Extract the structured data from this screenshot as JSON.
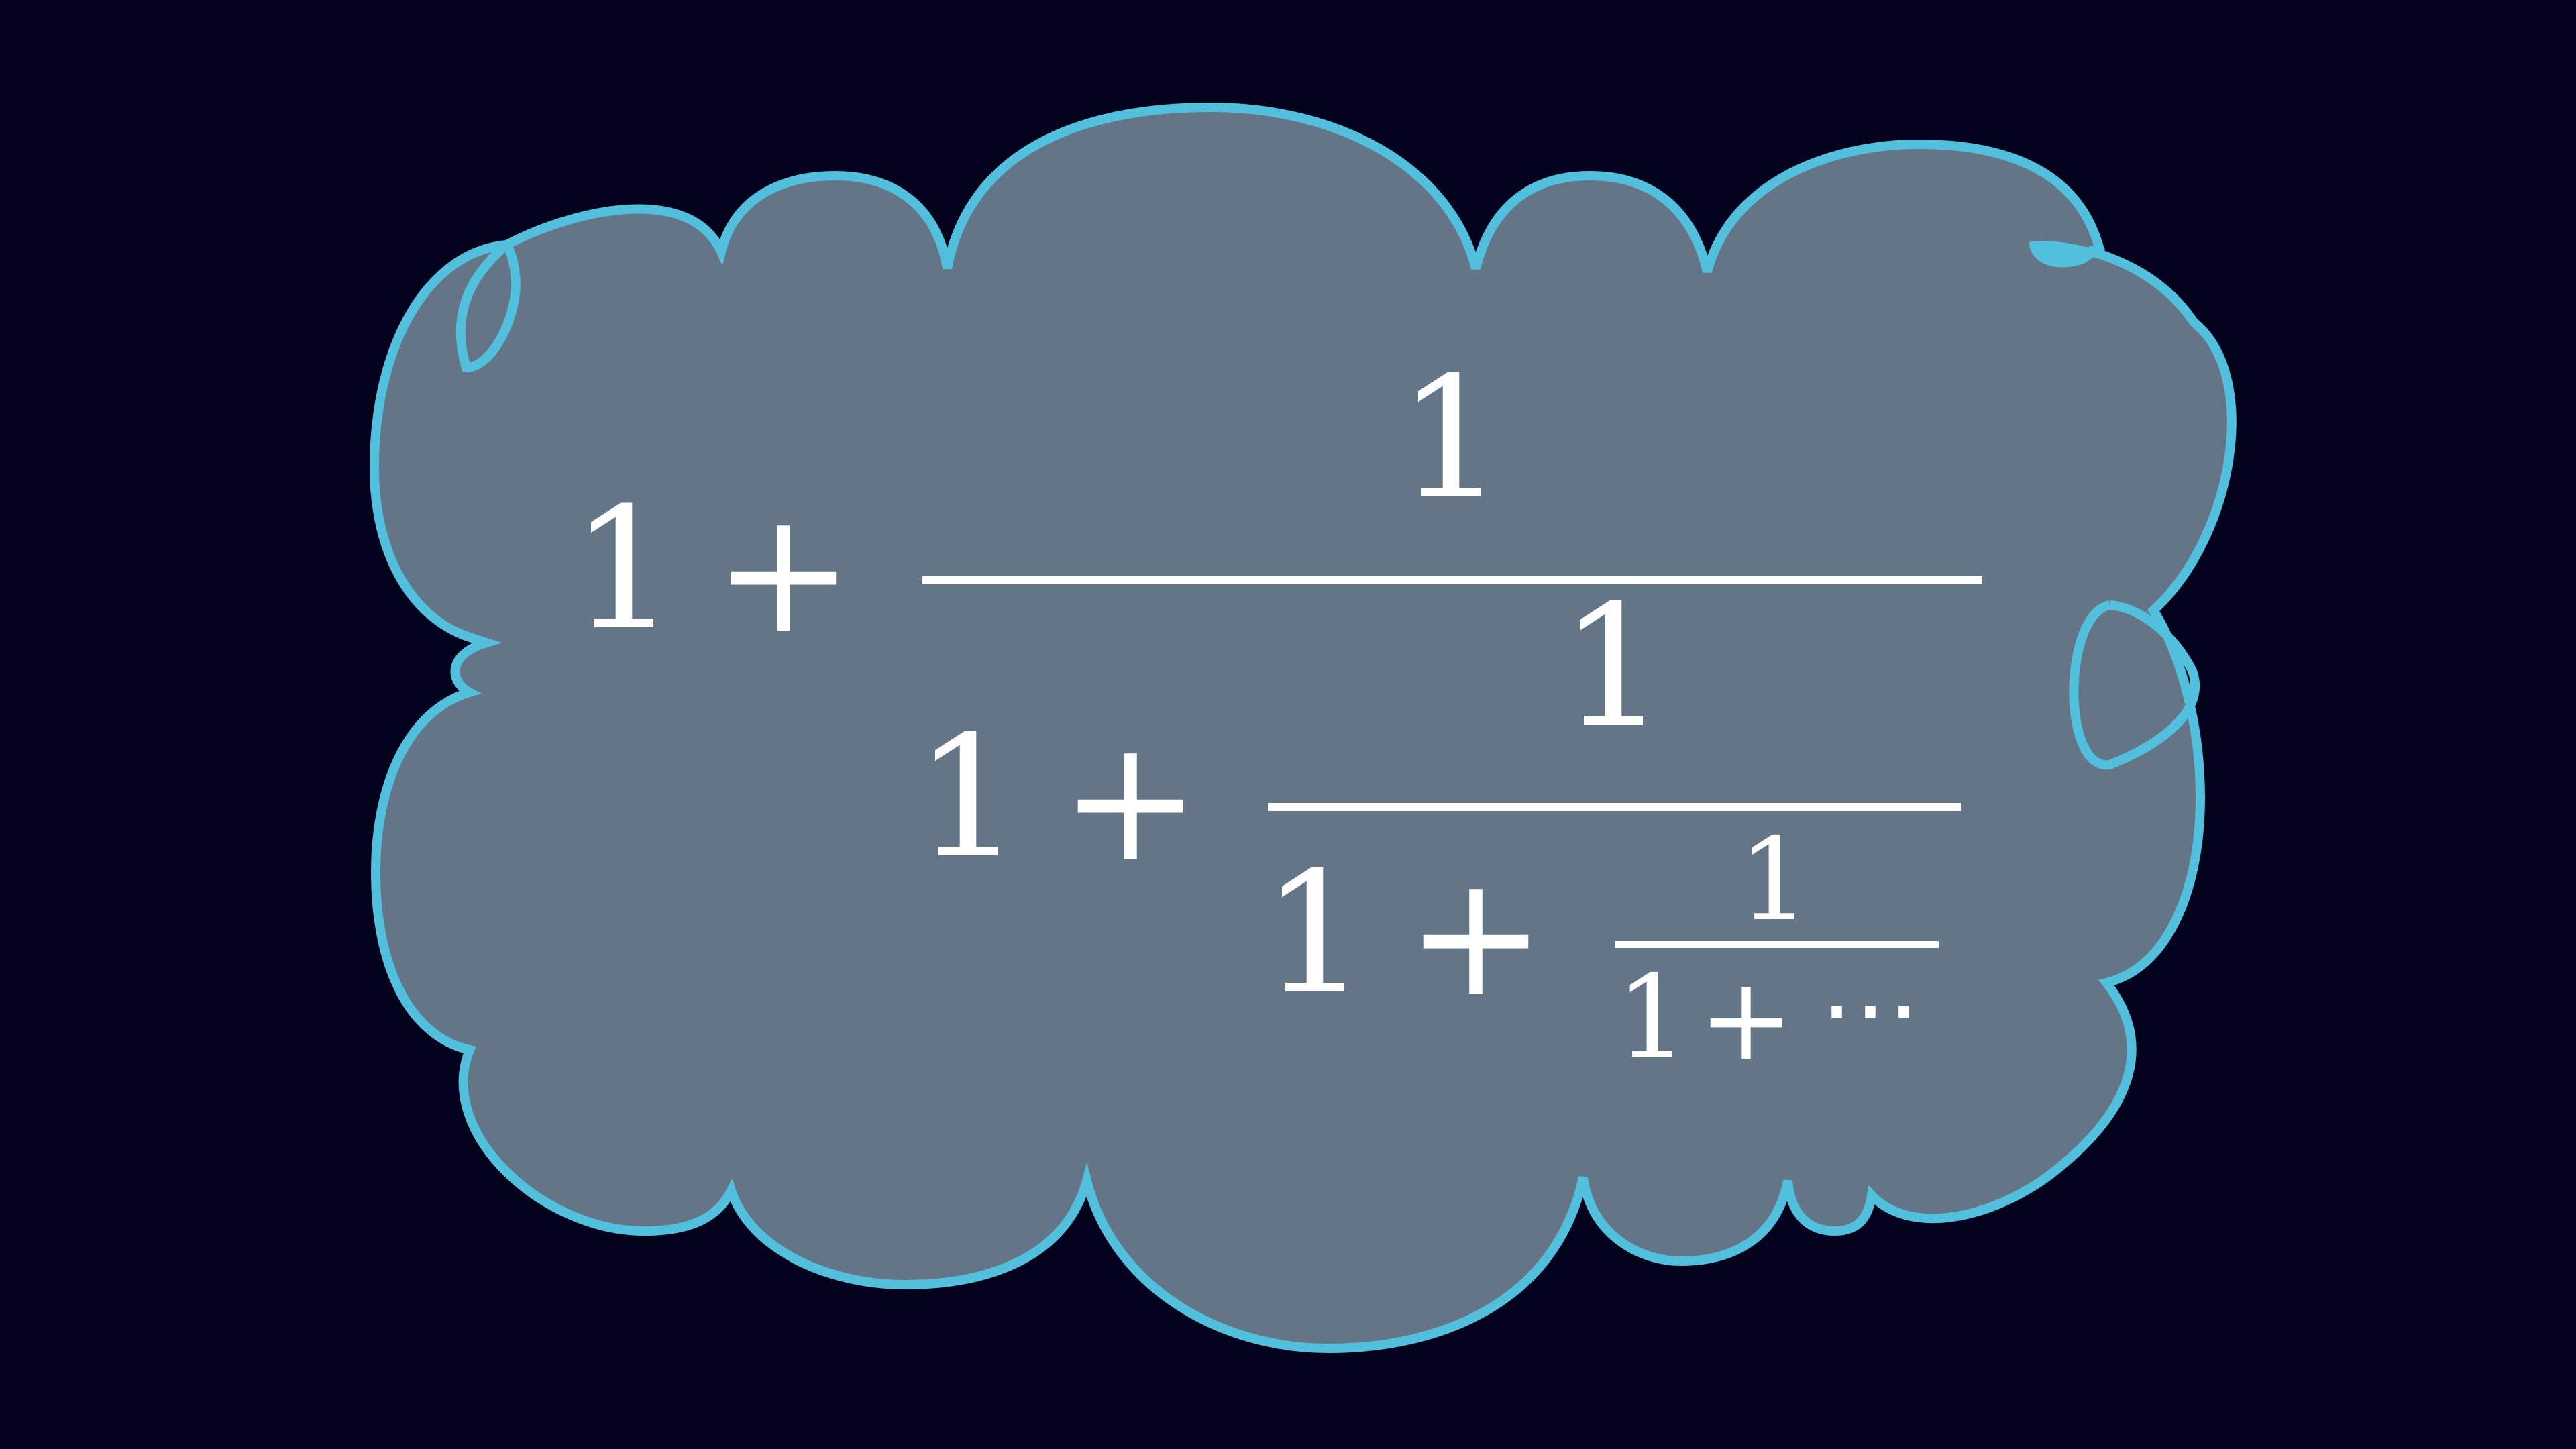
{
  "colors": {
    "background": "#02021c",
    "cloud_fill": "#647587",
    "cloud_outline": "#52c0dd",
    "math_text": "#ffffff"
  },
  "formula": {
    "level1": {
      "one": "1",
      "plus": "+",
      "numerator": "1"
    },
    "level2": {
      "one": "1",
      "plus": "+",
      "numerator": "1"
    },
    "level3": {
      "one": "1",
      "plus": "+",
      "numerator": "1"
    },
    "level4": {
      "one": "1",
      "plus": "+",
      "ellipsis": "⋯"
    }
  }
}
